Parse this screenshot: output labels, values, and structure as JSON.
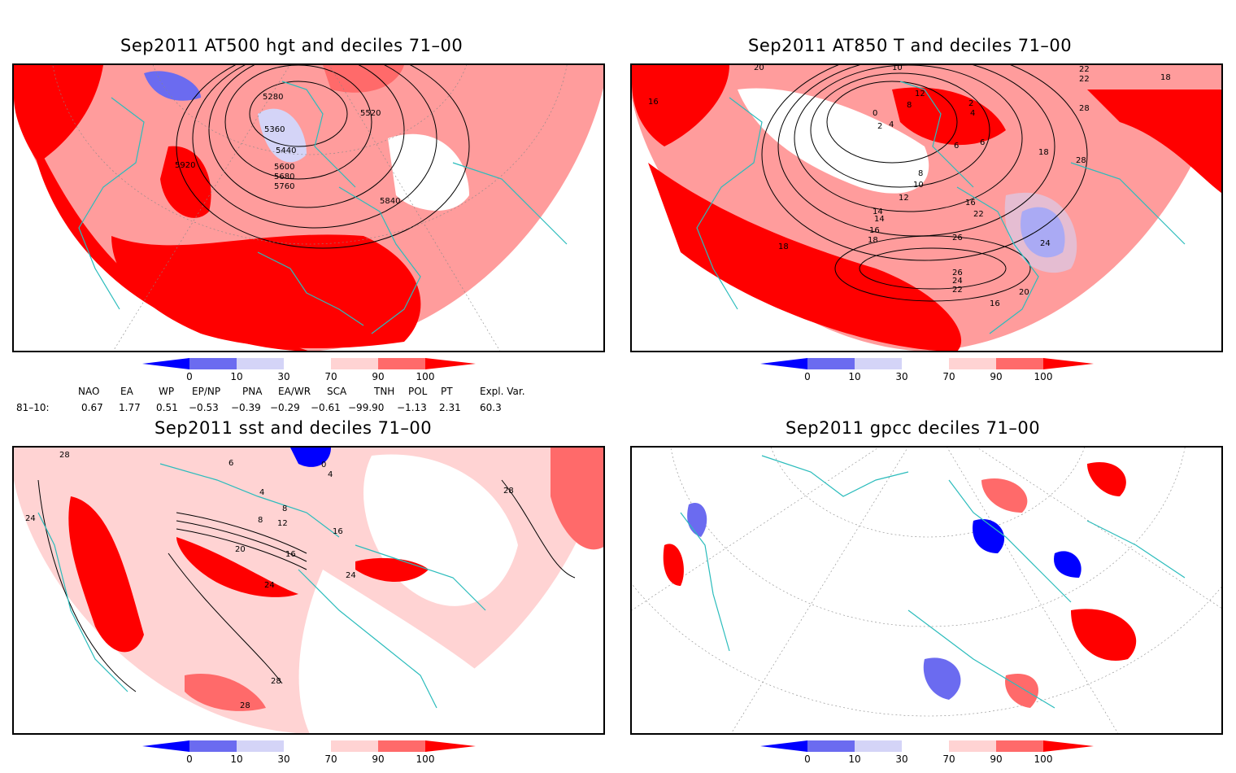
{
  "panels": [
    {
      "title": "Sep2011 AT500 hgt and deciles 71–00",
      "contour_labels": [
        "5280",
        "5520",
        "5360",
        "5440",
        "5600",
        "5680",
        "5760",
        "5920",
        "5840"
      ]
    },
    {
      "title": "Sep2011 AT850 T and deciles 71–00",
      "contour_labels": [
        "20",
        "10",
        "12",
        "2",
        "4",
        "6",
        "8",
        "10",
        "12",
        "14",
        "16",
        "18",
        "22",
        "24",
        "26",
        "28",
        "18",
        "16",
        "20",
        "26",
        "24",
        "22",
        "18",
        "16",
        "22",
        "22",
        "28",
        "6",
        "4",
        "2",
        "0",
        "8",
        "14",
        "16",
        "18"
      ]
    },
    {
      "title": "Sep2011 sst and deciles 71–00",
      "contour_labels": [
        "28",
        "24",
        "6",
        "4",
        "8",
        "12",
        "16",
        "20",
        "16",
        "24",
        "28",
        "28",
        "28",
        "24",
        "4",
        "0",
        "8"
      ]
    },
    {
      "title": "Sep2011 gpcc deciles 71–00",
      "contour_labels": []
    }
  ],
  "colorbar": {
    "tick_labels": [
      "0",
      "10",
      "30",
      "70",
      "90",
      "100"
    ],
    "colors": [
      "#0000ff",
      "#6b6bf0",
      "#d4d4f7",
      "#ffffff",
      "#ffd3d3",
      "#ff6a6a",
      "#ff0000"
    ]
  },
  "indices": {
    "headers": [
      "NAO",
      "EA",
      "WP",
      "EP/NP",
      "PNA",
      "EA/WR",
      "SCA",
      "TNH",
      "POL",
      "PT",
      "Expl. Var."
    ],
    "row_label": "81–10:",
    "values": [
      "0.67",
      "1.77",
      "0.51",
      "−0.53",
      "−0.39",
      "−0.29",
      "−0.61",
      "−99.90",
      "−1.13",
      "2.31",
      "60.3"
    ]
  },
  "palette": {
    "coast": "#2bbcbc",
    "grid": "#888888",
    "contour": "#000000"
  }
}
